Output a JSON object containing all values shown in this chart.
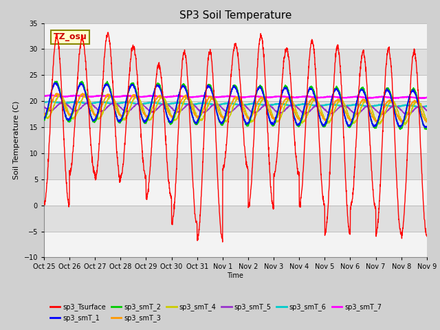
{
  "title": "SP3 Soil Temperature",
  "ylabel": "Soil Temperature (C)",
  "xlabel": "Time",
  "annotation": "TZ_osu",
  "ylim": [
    -10,
    35
  ],
  "yticks": [
    -10,
    -5,
    0,
    5,
    10,
    15,
    20,
    25,
    30,
    35
  ],
  "xtick_labels": [
    "Oct 25",
    "Oct 26",
    "Oct 27",
    "Oct 28",
    "Oct 29",
    "Oct 30",
    "Oct 31",
    "Nov 1",
    "Nov 2",
    "Nov 3",
    "Nov 4",
    "Nov 5",
    "Nov 6",
    "Nov 7",
    "Nov 8",
    "Nov 9"
  ],
  "fig_bg": "#d0d0d0",
  "plot_bg": "#e8e8e8",
  "series_colors": {
    "sp3_Tsurface": "#ff0000",
    "sp3_smT_1": "#0000ff",
    "sp3_smT_2": "#00cc00",
    "sp3_smT_3": "#ff9900",
    "sp3_smT_4": "#cccc00",
    "sp3_smT_5": "#9933cc",
    "sp3_smT_6": "#00cccc",
    "sp3_smT_7": "#ff00ff"
  },
  "n_days": 15,
  "pts_per_day": 144,
  "surface_peaks": [
    32.5,
    32.0,
    33.0,
    30.5,
    27.0,
    29.5,
    29.5,
    31.0,
    32.5,
    30.0,
    31.5,
    30.5,
    29.5,
    30.0,
    29.5
  ],
  "surface_troughs": [
    0.0,
    6.0,
    5.0,
    5.5,
    1.5,
    -3.5,
    -6.5,
    7.0,
    -0.5,
    6.0,
    0.0,
    -5.5,
    -0.5,
    -5.5,
    -5.5
  ]
}
